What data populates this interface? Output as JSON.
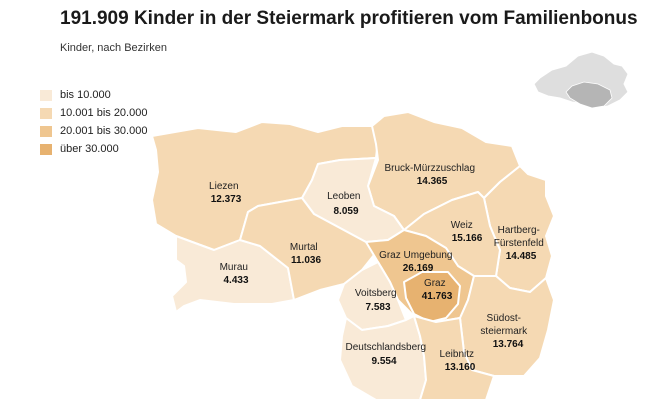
{
  "title": "191.909 Kinder in der Steiermark profitieren vom Familienbonus",
  "subtitle": "Kinder, nach Bezirken",
  "legend": [
    {
      "label": "bis 10.000",
      "color": "#f9ead7"
    },
    {
      "label": "10.001 bis 20.000",
      "color": "#f5d9b3"
    },
    {
      "label": "20.001 bis 30.000",
      "color": "#efc690"
    },
    {
      "label": "über 30.000",
      "color": "#e7b270"
    }
  ],
  "districts": [
    {
      "id": "liezen",
      "name": [
        "Liezen"
      ],
      "value": "12.373",
      "class": 1
    },
    {
      "id": "leoben",
      "name": [
        "Leoben"
      ],
      "value": "8.059",
      "class": 0
    },
    {
      "id": "bruck-muerzzuschlag",
      "name": [
        "Bruck-Mürzzuschlag"
      ],
      "value": "14.365",
      "class": 1
    },
    {
      "id": "murau",
      "name": [
        "Murau"
      ],
      "value": "4.433",
      "class": 0
    },
    {
      "id": "murtal",
      "name": [
        "Murtal"
      ],
      "value": "11.036",
      "class": 1
    },
    {
      "id": "weiz",
      "name": [
        "Weiz"
      ],
      "value": "15.166",
      "class": 1
    },
    {
      "id": "hartberg-fuerstenfeld",
      "name": [
        "Hartberg-",
        "Fürstenfeld"
      ],
      "value": "14.485",
      "class": 1
    },
    {
      "id": "graz-umgebung",
      "name": [
        "Graz Umgebung"
      ],
      "value": "26.169",
      "class": 2
    },
    {
      "id": "graz",
      "name": [
        "Graz"
      ],
      "value": "41.763",
      "class": 3
    },
    {
      "id": "voitsberg",
      "name": [
        "Voitsberg"
      ],
      "value": "7.583",
      "class": 0
    },
    {
      "id": "suedoststeiermark",
      "name": [
        "Südost-",
        "steiermark"
      ],
      "value": "13.764",
      "class": 1
    },
    {
      "id": "deutschlandsberg",
      "name": [
        "Deutschlandsberg"
      ],
      "value": "9.554",
      "class": 0
    },
    {
      "id": "leibnitz",
      "name": [
        "Leibnitz"
      ],
      "value": "13.160",
      "class": 1
    }
  ]
}
